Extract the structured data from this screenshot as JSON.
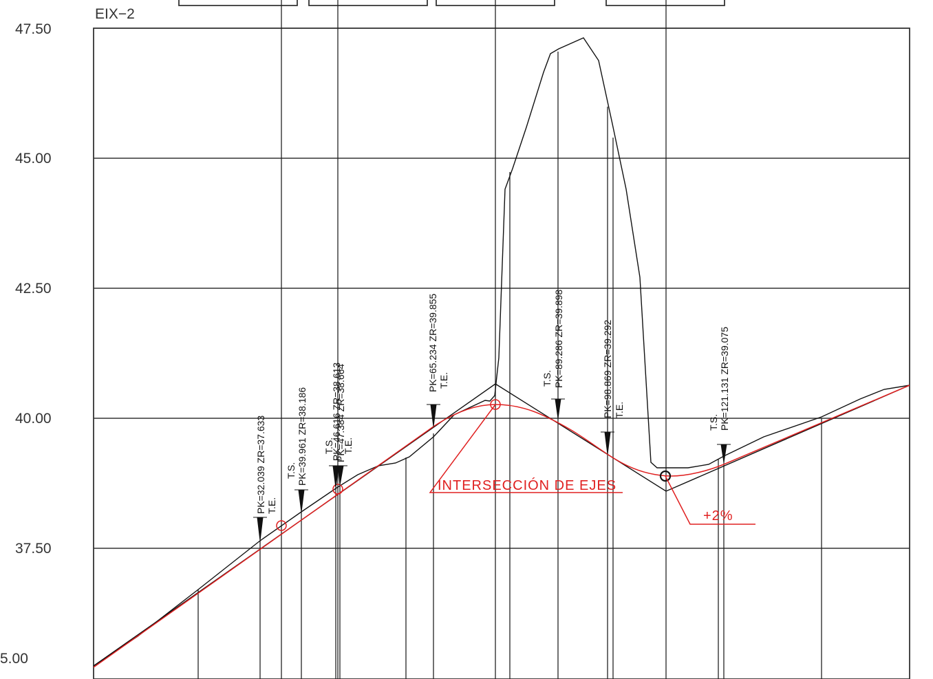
{
  "title": "EIX−2",
  "y_axis_labels": [
    "47.50",
    "45.00",
    "42.50",
    "40.00",
    "37.50",
    "5.00"
  ],
  "stations": [
    {
      "pk_label": "PK=32.039  ZR=37.633",
      "type_label": "T.E."
    },
    {
      "pk_label": "PK=39.961  ZR=38.186",
      "type_label": "T.S."
    },
    {
      "pk_label": "PK=46.616  ZR=38.613",
      "type_label": "T.S."
    },
    {
      "pk_label": "PK=47.384  ZR=38.664",
      "type_label": "T.E."
    },
    {
      "pk_label": "PK=65.234  ZR=39.855",
      "type_label": "T.E."
    },
    {
      "pk_label": "PK=89.286  ZR=39.898",
      "type_label": "T.S."
    },
    {
      "pk_label": "PK=98.869  ZR=39.292",
      "type_label": "T.E."
    },
    {
      "pk_label": "PK=121.131  ZR=39.075",
      "type_label": "T.S."
    }
  ],
  "annotations": {
    "intersection": "INTERSECCIÓN DE EJES",
    "slope": "+2%"
  },
  "colors": {
    "grade_line": "#e02020",
    "terrain_line": "#111111",
    "grid": "#333333"
  }
}
